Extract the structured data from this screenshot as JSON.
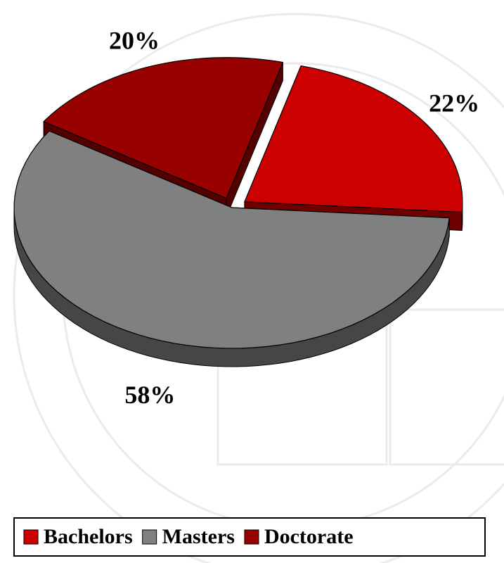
{
  "chart_data": {
    "type": "pie",
    "categories": [
      "Bachelors",
      "Masters",
      "Doctorate"
    ],
    "values": [
      22,
      58,
      20
    ],
    "value_labels": [
      "22%",
      "58%",
      "20%"
    ],
    "colors": [
      "#cc0000",
      "#808080",
      "#990000"
    ],
    "legend": "bottom"
  }
}
